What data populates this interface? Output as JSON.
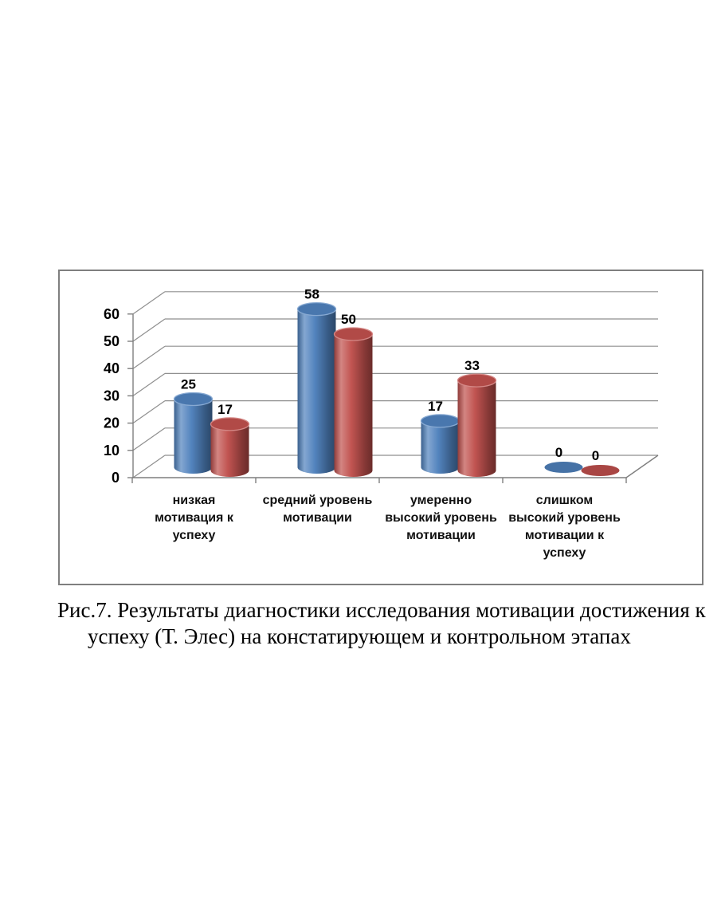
{
  "figure": {
    "caption_line1": "Рис.7. Результаты диагностики исследования мотивации достижения к",
    "caption_line2": "успеху (Т. Элес) на констатирующем и контрольном этапах"
  },
  "chart_data": {
    "type": "bar",
    "style": "3d-cylinder",
    "title": "",
    "xlabel": "",
    "ylabel": "",
    "categories": [
      "низкая мотивация к успеху",
      "средний уровень мотивации",
      "умеренно высокий уровень мотивации",
      "слишком высокий уровень мотивации к успеху"
    ],
    "category_lines": [
      [
        "низкая",
        "мотивация к",
        "успеху"
      ],
      [
        "средний уровень",
        "мотивации"
      ],
      [
        "умеренно",
        "высокий уровень",
        "мотивации"
      ],
      [
        "слишком",
        "высокий уровень",
        "мотивации к",
        "успеху"
      ]
    ],
    "series": [
      {
        "color": "#4F81BD",
        "values": [
          25,
          58,
          17,
          0
        ]
      },
      {
        "color": "#C0504D",
        "values": [
          17,
          50,
          33,
          0
        ]
      }
    ],
    "data_labels": [
      [
        "25",
        "58",
        "17",
        "0"
      ],
      [
        "17",
        "50",
        "33",
        "0"
      ]
    ],
    "y_ticks": [
      0,
      10,
      20,
      30,
      40,
      50,
      60
    ],
    "ylim": [
      0,
      60
    ],
    "grid": true,
    "legend_position": "none",
    "gridline_color": "#8f8f8f",
    "axis_color": "#7f7f7f",
    "text_color": "#000000"
  }
}
